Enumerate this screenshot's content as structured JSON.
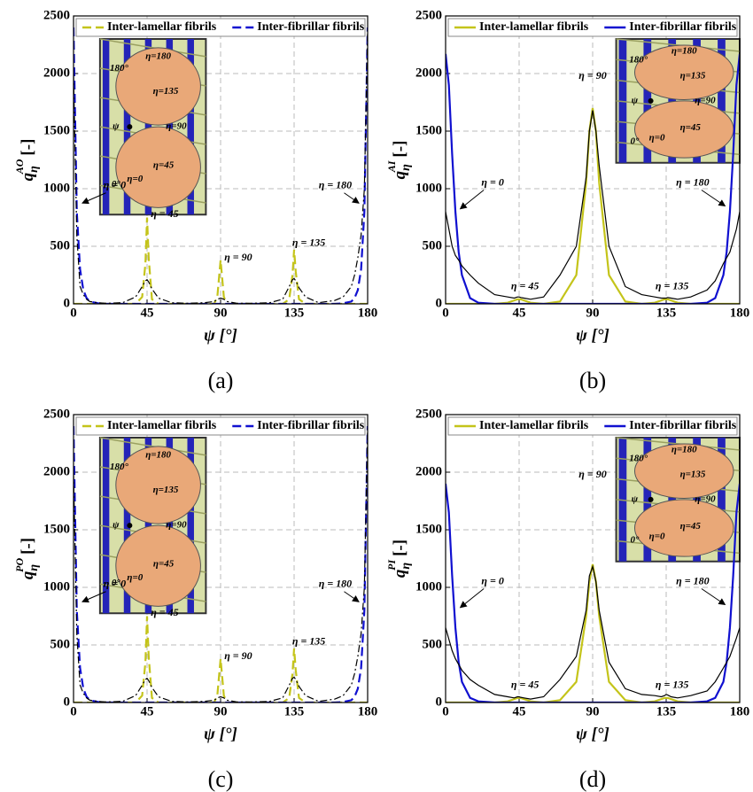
{
  "chart_data": [
    {
      "type": "line",
      "caption": "(a)",
      "xlabel": "ψ [°]",
      "ylabel_symbol": "q",
      "ylabel_sub": "η",
      "ylabel_sup": "AO",
      "ylabel_unit": "[-]",
      "xlim": [
        0,
        180
      ],
      "xticks": [
        0,
        45,
        90,
        135,
        180
      ],
      "ylim": [
        0,
        2500
      ],
      "yticks": [
        0,
        500,
        1000,
        1500,
        2000,
        2500
      ],
      "grid": true,
      "inset_side": "left",
      "inset_labels": [
        "180°",
        "η=180",
        "η=135",
        "ψ",
        "η=90",
        "0°",
        "η=0",
        "η=45"
      ],
      "annotations": [
        "η = 0",
        "η = 45",
        "η = 90",
        "η = 135",
        "η = 180"
      ],
      "x": [
        0,
        2,
        4,
        6,
        8,
        10,
        15,
        20,
        30,
        38,
        42,
        44,
        45,
        46,
        48,
        52,
        60,
        70,
        80,
        86,
        88,
        90,
        92,
        94,
        100,
        110,
        120,
        128,
        132,
        134,
        135,
        136,
        138,
        142,
        150,
        160,
        165,
        170,
        172,
        174,
        176,
        178,
        180
      ],
      "series": [
        {
          "name": "Inter-lamellar fibrils",
          "color": "#c4c41a",
          "linestyle": "dashed",
          "values": [
            0,
            0,
            0,
            0,
            0,
            0,
            0,
            0,
            0,
            0,
            60,
            350,
            750,
            400,
            40,
            0,
            0,
            0,
            0,
            0,
            60,
            380,
            60,
            0,
            0,
            0,
            0,
            0,
            40,
            250,
            470,
            280,
            40,
            0,
            0,
            0,
            0,
            0,
            0,
            0,
            0,
            0,
            0
          ]
        },
        {
          "name": "Inter-fibrillar fibrils",
          "color": "#1010d0",
          "linestyle": "dashed",
          "values": [
            2400,
            800,
            300,
            120,
            50,
            20,
            5,
            0,
            0,
            0,
            0,
            0,
            0,
            0,
            0,
            0,
            0,
            0,
            0,
            0,
            0,
            0,
            0,
            0,
            0,
            0,
            0,
            0,
            0,
            0,
            0,
            0,
            0,
            0,
            0,
            0,
            5,
            20,
            50,
            120,
            300,
            800,
            2400
          ]
        },
        {
          "color": "#000000",
          "linestyle": "dashdot",
          "values": [
            2000,
            600,
            150,
            80,
            40,
            20,
            10,
            5,
            10,
            60,
            150,
            200,
            210,
            190,
            130,
            50,
            10,
            5,
            10,
            20,
            40,
            50,
            40,
            20,
            5,
            5,
            10,
            40,
            150,
            210,
            220,
            200,
            140,
            60,
            10,
            30,
            60,
            150,
            250,
            400,
            600,
            1000,
            2400
          ]
        }
      ]
    },
    {
      "type": "line",
      "caption": "(b)",
      "xlabel": "ψ [°]",
      "ylabel_symbol": "q",
      "ylabel_sub": "η",
      "ylabel_sup": "AI",
      "ylabel_unit": "[-]",
      "xlim": [
        0,
        180
      ],
      "xticks": [
        0,
        45,
        90,
        135,
        180
      ],
      "ylim": [
        0,
        2500
      ],
      "yticks": [
        0,
        500,
        1000,
        1500,
        2000,
        2500
      ],
      "grid": true,
      "inset_side": "right",
      "inset_labels": [
        "180°",
        "η=180",
        "η=135",
        "ψ",
        "η=90",
        "0°",
        "η=0",
        "η=45"
      ],
      "annotations": [
        "η = 0",
        "η = 45",
        "η = 90",
        "η = 135",
        "η = 180"
      ],
      "x": [
        0,
        2,
        4,
        6,
        8,
        10,
        15,
        20,
        30,
        38,
        42,
        44,
        45,
        46,
        48,
        52,
        60,
        70,
        80,
        86,
        88,
        90,
        92,
        94,
        100,
        110,
        120,
        128,
        132,
        134,
        135,
        136,
        138,
        142,
        150,
        160,
        165,
        170,
        172,
        174,
        176,
        178,
        180
      ],
      "series": [
        {
          "name": "Inter-lamellar fibrils",
          "color": "#c4c41a",
          "linestyle": "solid",
          "values": [
            0,
            0,
            0,
            0,
            0,
            0,
            0,
            0,
            0,
            10,
            30,
            40,
            40,
            40,
            30,
            10,
            0,
            20,
            250,
            1050,
            1500,
            1700,
            1500,
            1050,
            250,
            20,
            0,
            10,
            30,
            40,
            40,
            40,
            30,
            10,
            0,
            0,
            0,
            0,
            0,
            0,
            0,
            0,
            0
          ]
        },
        {
          "name": "Inter-fibrillar fibrils",
          "color": "#1010d0",
          "linestyle": "solid",
          "values": [
            2170,
            1900,
            1300,
            800,
            450,
            250,
            50,
            10,
            0,
            0,
            0,
            0,
            0,
            0,
            0,
            0,
            0,
            0,
            0,
            0,
            0,
            0,
            0,
            0,
            0,
            0,
            0,
            0,
            0,
            0,
            0,
            0,
            0,
            0,
            0,
            10,
            50,
            250,
            450,
            800,
            1300,
            1900,
            2170
          ]
        },
        {
          "color": "#000000",
          "linestyle": "solid",
          "values": [
            800,
            650,
            500,
            420,
            380,
            330,
            250,
            180,
            80,
            60,
            50,
            60,
            60,
            55,
            50,
            40,
            60,
            250,
            500,
            1100,
            1500,
            1680,
            1500,
            1200,
            500,
            150,
            80,
            60,
            50,
            50,
            50,
            55,
            50,
            40,
            60,
            120,
            200,
            350,
            400,
            450,
            550,
            650,
            800
          ]
        }
      ]
    },
    {
      "type": "line",
      "caption": "(c)",
      "xlabel": "ψ [°]",
      "ylabel_symbol": "q",
      "ylabel_sub": "η",
      "ylabel_sup": "PO",
      "ylabel_unit": "[-]",
      "xlim": [
        0,
        180
      ],
      "xticks": [
        0,
        45,
        90,
        135,
        180
      ],
      "ylim": [
        0,
        2500
      ],
      "yticks": [
        0,
        500,
        1000,
        1500,
        2000,
        2500
      ],
      "grid": true,
      "inset_side": "left",
      "inset_labels": [
        "180°",
        "η=180",
        "η=135",
        "ψ",
        "η=90",
        "0°",
        "η=0",
        "η=45"
      ],
      "annotations": [
        "η = 0",
        "η = 45",
        "η = 90",
        "η = 135",
        "η = 180"
      ],
      "x": [
        0,
        2,
        4,
        6,
        8,
        10,
        15,
        20,
        30,
        38,
        42,
        44,
        45,
        46,
        48,
        52,
        60,
        70,
        80,
        86,
        88,
        90,
        92,
        94,
        100,
        110,
        120,
        128,
        132,
        134,
        135,
        136,
        138,
        142,
        150,
        160,
        165,
        170,
        172,
        174,
        176,
        178,
        180
      ],
      "series": [
        {
          "name": "Inter-lamellar fibrils",
          "color": "#c4c41a",
          "linestyle": "dashed",
          "values": [
            0,
            0,
            0,
            0,
            0,
            0,
            0,
            0,
            0,
            0,
            60,
            350,
            750,
            400,
            40,
            0,
            0,
            0,
            0,
            0,
            60,
            380,
            60,
            0,
            0,
            0,
            0,
            0,
            40,
            250,
            470,
            280,
            40,
            0,
            0,
            0,
            0,
            0,
            0,
            0,
            0,
            0,
            0
          ]
        },
        {
          "name": "Inter-fibrillar fibrils",
          "color": "#1010d0",
          "linestyle": "dashed",
          "values": [
            2400,
            800,
            300,
            120,
            50,
            20,
            5,
            0,
            0,
            0,
            0,
            0,
            0,
            0,
            0,
            0,
            0,
            0,
            0,
            0,
            0,
            0,
            0,
            0,
            0,
            0,
            0,
            0,
            0,
            0,
            0,
            0,
            0,
            0,
            0,
            0,
            5,
            20,
            50,
            120,
            300,
            800,
            2400
          ]
        },
        {
          "color": "#000000",
          "linestyle": "dashdot",
          "values": [
            2000,
            600,
            150,
            80,
            40,
            20,
            10,
            5,
            10,
            60,
            150,
            200,
            210,
            190,
            130,
            50,
            10,
            5,
            10,
            20,
            40,
            50,
            40,
            20,
            5,
            5,
            10,
            40,
            150,
            210,
            220,
            200,
            140,
            60,
            10,
            30,
            60,
            150,
            250,
            400,
            600,
            1000,
            2400
          ]
        }
      ]
    },
    {
      "type": "line",
      "caption": "(d)",
      "xlabel": "ψ [°]",
      "ylabel_symbol": "q",
      "ylabel_sub": "η",
      "ylabel_sup": "PI",
      "ylabel_unit": "[-]",
      "xlim": [
        0,
        180
      ],
      "xticks": [
        0,
        45,
        90,
        135,
        180
      ],
      "ylim": [
        0,
        2500
      ],
      "yticks": [
        0,
        500,
        1000,
        1500,
        2000,
        2500
      ],
      "grid": true,
      "inset_side": "right",
      "inset_labels": [
        "180°",
        "η=180",
        "η=135",
        "ψ",
        "η=90",
        "0°",
        "η=0",
        "η=45"
      ],
      "annotations": [
        "η = 0",
        "η = 45",
        "η = 90",
        "η = 135",
        "η = 180"
      ],
      "x": [
        0,
        2,
        4,
        6,
        8,
        10,
        15,
        20,
        30,
        38,
        42,
        44,
        45,
        46,
        48,
        52,
        60,
        70,
        80,
        86,
        88,
        90,
        92,
        94,
        100,
        110,
        120,
        128,
        132,
        134,
        135,
        136,
        138,
        142,
        150,
        160,
        165,
        170,
        172,
        174,
        176,
        178,
        180
      ],
      "series": [
        {
          "name": "Inter-lamellar fibrils",
          "color": "#c4c41a",
          "linestyle": "solid",
          "values": [
            0,
            0,
            0,
            0,
            0,
            0,
            0,
            0,
            0,
            10,
            30,
            40,
            40,
            40,
            30,
            10,
            0,
            20,
            180,
            750,
            1050,
            1200,
            1050,
            750,
            180,
            20,
            0,
            10,
            30,
            40,
            40,
            40,
            30,
            10,
            0,
            0,
            0,
            0,
            0,
            0,
            0,
            0,
            0
          ]
        },
        {
          "name": "Inter-fibrillar fibrils",
          "color": "#1010d0",
          "linestyle": "solid",
          "values": [
            1900,
            1650,
            1100,
            650,
            350,
            180,
            40,
            10,
            0,
            0,
            0,
            0,
            0,
            0,
            0,
            0,
            0,
            0,
            0,
            0,
            0,
            0,
            0,
            0,
            0,
            0,
            0,
            0,
            0,
            0,
            0,
            0,
            0,
            0,
            0,
            10,
            40,
            180,
            350,
            650,
            1100,
            1650,
            1900
          ]
        },
        {
          "color": "#000000",
          "linestyle": "solid",
          "values": [
            650,
            550,
            450,
            380,
            330,
            280,
            200,
            150,
            70,
            50,
            40,
            50,
            50,
            45,
            40,
            30,
            50,
            200,
            400,
            800,
            1100,
            1180,
            1050,
            800,
            350,
            120,
            70,
            60,
            50,
            60,
            70,
            65,
            50,
            40,
            60,
            100,
            180,
            300,
            350,
            400,
            480,
            560,
            650
          ]
        }
      ]
    }
  ]
}
